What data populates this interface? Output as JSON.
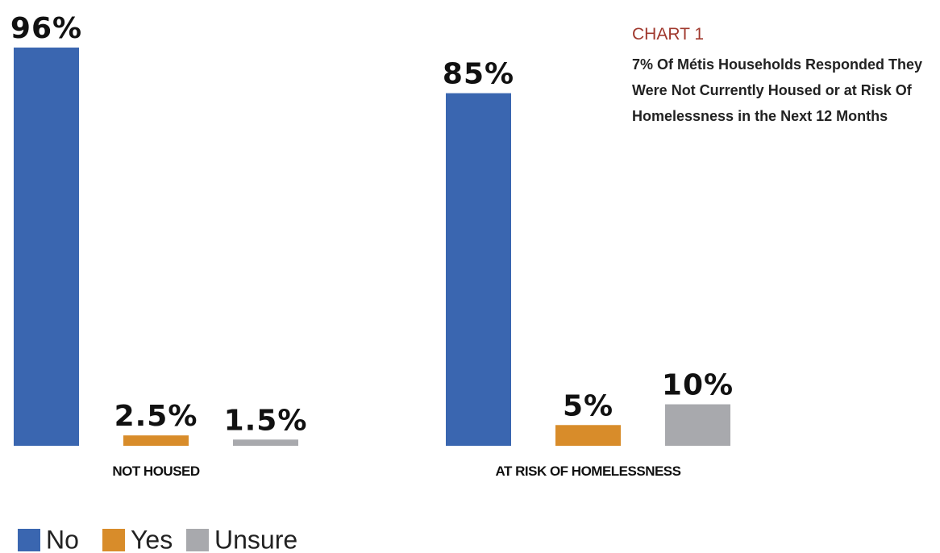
{
  "chart_data": {
    "type": "bar",
    "title": "CHART 1",
    "subtitle": "7% Of Métis Households Responded They Were Not Currently Housed or at Risk Of Homelessness in the Next 12 Months",
    "categories": [
      "NOT HOUSED",
      "AT RISK OF HOMELESSNESS"
    ],
    "series": [
      {
        "name": "No",
        "color": "#3a66b0",
        "values": [
          96,
          85
        ],
        "value_labels": [
          "96%",
          "85%"
        ]
      },
      {
        "name": "Yes",
        "color": "#d88c2a",
        "values": [
          2.5,
          5
        ],
        "value_labels": [
          "2.5%",
          "5%"
        ]
      },
      {
        "name": "Unsure",
        "color": "#a8a9ad",
        "values": [
          1.5,
          10
        ],
        "value_labels": [
          "1.5%",
          "10%"
        ]
      }
    ]
  }
}
